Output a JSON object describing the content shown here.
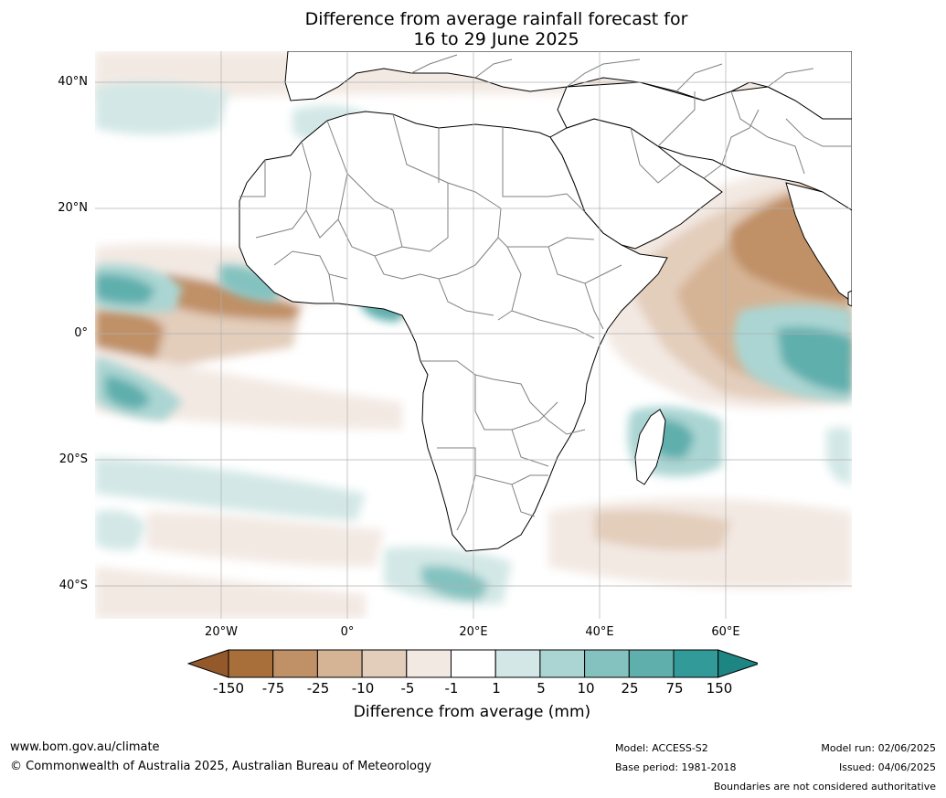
{
  "title": {
    "line1": "Difference from average rainfall forecast for",
    "line2": "16 to 29 June 2025"
  },
  "map": {
    "region": "Africa and Indian Ocean",
    "lat_labels": [
      "40°N",
      "20°N",
      "0°",
      "20°S",
      "40°S"
    ],
    "lon_labels": [
      "20°W",
      "0°",
      "20°E",
      "40°E",
      "60°E"
    ],
    "land_color": "#ffffff",
    "coastline_color": "#000000",
    "border_color": "#808080",
    "grid_color": "#b0b0b0"
  },
  "legend": {
    "ticks": [
      "-150",
      "-75",
      "-25",
      "-10",
      "-5",
      "-1",
      "1",
      "5",
      "10",
      "25",
      "75",
      "150"
    ],
    "colors": [
      "#a86f3b",
      "#c09066",
      "#d5b495",
      "#e3cdbb",
      "#f3e9e3",
      "#ffffff",
      "#d3e8e6",
      "#aad5d3",
      "#84c2c0",
      "#5fafad",
      "#329a98"
    ],
    "under_color": "#94592b",
    "over_color": "#1e8682",
    "label": "Difference from average (mm)"
  },
  "footer": {
    "website": "www.bom.gov.au/climate",
    "copyright": "© Commonwealth of Australia 2025, Australian Bureau of Meteorology",
    "model": "Model: ACCESS-S2",
    "base_period": "Base period: 1981-2018",
    "model_run": "Model run: 02/06/2025",
    "issued": "Issued: 04/06/2025",
    "disclaimer": "Boundaries are not considered authoritative"
  }
}
